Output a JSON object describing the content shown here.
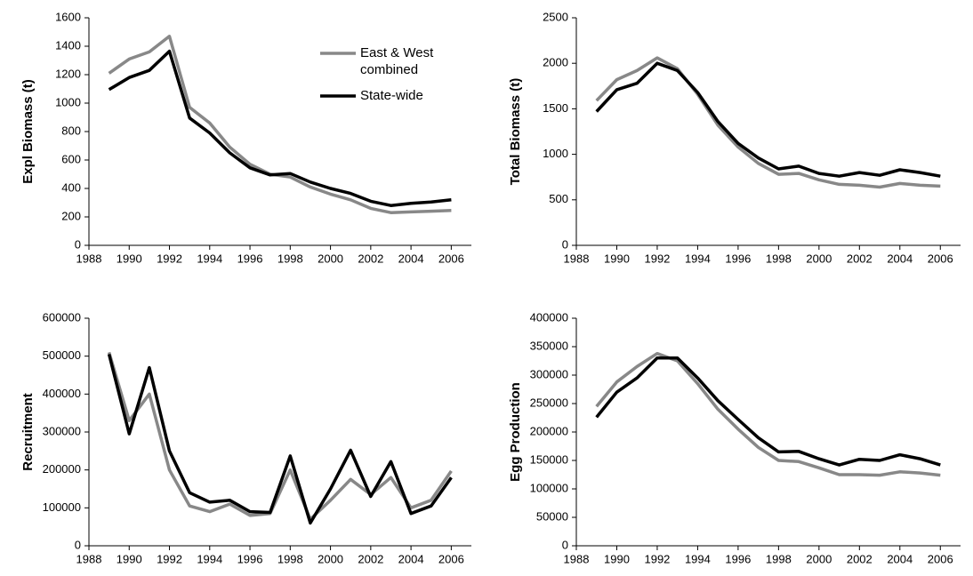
{
  "chart_data": [
    {
      "type": "line",
      "ylabel": "Expl Biomass (t)",
      "legend": "upper right",
      "x": [
        1989,
        1990,
        1991,
        1992,
        1993,
        1994,
        1995,
        1996,
        1997,
        1998,
        1999,
        2000,
        2001,
        2002,
        2003,
        2004,
        2005,
        2006
      ],
      "xlim": [
        1988,
        2007
      ],
      "xticks": [
        1988,
        1990,
        1992,
        1994,
        1996,
        1998,
        2000,
        2002,
        2004,
        2006
      ],
      "ylim": [
        0,
        1600
      ],
      "yticks": [
        0,
        200,
        400,
        600,
        800,
        1000,
        1200,
        1400,
        1600
      ],
      "series": [
        {
          "name": "East & West combined",
          "color": "#888888",
          "values": [
            1210,
            1310,
            1360,
            1470,
            970,
            860,
            690,
            570,
            500,
            480,
            410,
            360,
            320,
            260,
            230,
            235,
            240,
            245
          ]
        },
        {
          "name": "State-wide",
          "color": "#000000",
          "values": [
            1095,
            1180,
            1230,
            1365,
            895,
            790,
            650,
            545,
            495,
            505,
            445,
            400,
            365,
            310,
            280,
            295,
            305,
            320
          ]
        }
      ]
    },
    {
      "type": "line",
      "ylabel": "Total Biomass (t)",
      "x": [
        1989,
        1990,
        1991,
        1992,
        1993,
        1994,
        1995,
        1996,
        1997,
        1998,
        1999,
        2000,
        2001,
        2002,
        2003,
        2004,
        2005,
        2006
      ],
      "xlim": [
        1988,
        2007
      ],
      "xticks": [
        1988,
        1990,
        1992,
        1994,
        1996,
        1998,
        2000,
        2002,
        2004,
        2006
      ],
      "ylim": [
        0,
        2500
      ],
      "yticks": [
        0,
        500,
        1000,
        1500,
        2000,
        2500
      ],
      "series": [
        {
          "color": "#888888",
          "values": [
            1590,
            1820,
            1920,
            2060,
            1940,
            1660,
            1320,
            1080,
            900,
            780,
            790,
            720,
            670,
            660,
            640,
            680,
            660,
            650
          ]
        },
        {
          "color": "#000000",
          "values": [
            1470,
            1710,
            1780,
            2000,
            1920,
            1680,
            1360,
            1120,
            960,
            840,
            870,
            790,
            760,
            800,
            770,
            830,
            800,
            760
          ]
        }
      ]
    },
    {
      "type": "line",
      "ylabel": "Recruitment",
      "x": [
        1989,
        1990,
        1991,
        1992,
        1993,
        1994,
        1995,
        1996,
        1997,
        1998,
        1999,
        2000,
        2001,
        2002,
        2003,
        2004,
        2005,
        2006
      ],
      "xlim": [
        1988,
        2007
      ],
      "xticks": [
        1988,
        1990,
        1992,
        1994,
        1996,
        1998,
        2000,
        2002,
        2004,
        2006
      ],
      "ylim": [
        0,
        600000
      ],
      "yticks": [
        0,
        100000,
        200000,
        300000,
        400000,
        500000,
        600000
      ],
      "series": [
        {
          "color": "#888888",
          "values": [
            510000,
            330000,
            400000,
            200000,
            105000,
            90000,
            110000,
            80000,
            85000,
            200000,
            70000,
            120000,
            175000,
            135000,
            180000,
            100000,
            120000,
            197000
          ]
        },
        {
          "color": "#000000",
          "values": [
            505000,
            295000,
            470000,
            250000,
            140000,
            115000,
            120000,
            90000,
            88000,
            237000,
            60000,
            150000,
            252000,
            130000,
            222000,
            85000,
            105000,
            180000
          ]
        }
      ]
    },
    {
      "type": "line",
      "ylabel": "Egg Production",
      "x": [
        1989,
        1990,
        1991,
        1992,
        1993,
        1994,
        1995,
        1996,
        1997,
        1998,
        1999,
        2000,
        2001,
        2002,
        2003,
        2004,
        2005,
        2006
      ],
      "xlim": [
        1988,
        2007
      ],
      "xticks": [
        1988,
        1990,
        1992,
        1994,
        1996,
        1998,
        2000,
        2002,
        2004,
        2006
      ],
      "ylim": [
        0,
        400000
      ],
      "yticks": [
        0,
        50000,
        100000,
        150000,
        200000,
        250000,
        300000,
        350000,
        400000
      ],
      "series": [
        {
          "color": "#888888",
          "values": [
            245000,
            288000,
            315000,
            338000,
            325000,
            285000,
            240000,
            205000,
            173000,
            150000,
            148000,
            137000,
            125000,
            125000,
            124000,
            130000,
            128000,
            124000
          ]
        },
        {
          "color": "#000000",
          "values": [
            226000,
            270000,
            295000,
            330000,
            330000,
            295000,
            255000,
            222000,
            190000,
            165000,
            166000,
            153000,
            142000,
            152000,
            150000,
            160000,
            153000,
            142000
          ]
        }
      ]
    }
  ]
}
